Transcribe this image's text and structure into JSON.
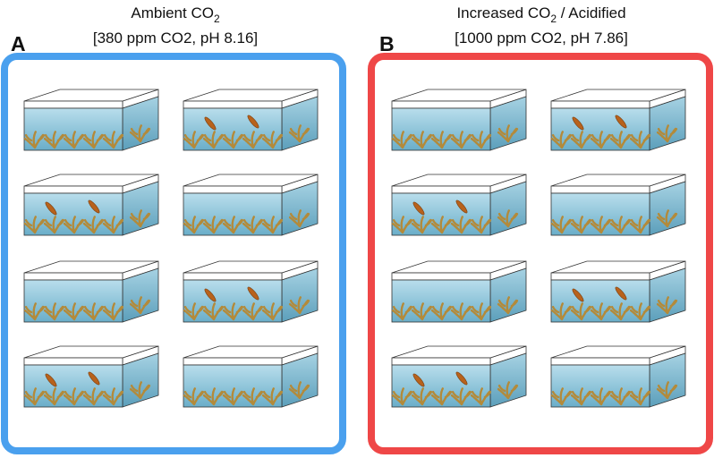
{
  "panels": [
    {
      "letter": "A",
      "title_parts": [
        "Ambient CO",
        "2"
      ],
      "subtitle": "[380 ppm CO2, pH 8.16]"
    },
    {
      "letter": "B",
      "title_parts": [
        "Increased CO",
        "2",
        " / Acidified"
      ],
      "subtitle": "[1000 ppm CO2, pH 7.86]"
    }
  ]
}
